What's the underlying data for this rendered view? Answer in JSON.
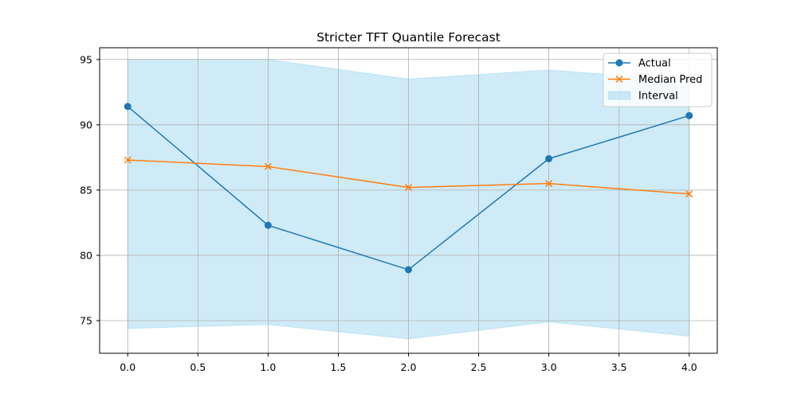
{
  "chart_data": {
    "type": "line",
    "title": "Stricter TFT Quantile Forecast",
    "xlabel": "",
    "ylabel": "",
    "x": [
      0,
      1,
      2,
      3,
      4
    ],
    "xlim": [
      -0.2,
      4.2
    ],
    "ylim": [
      72.5,
      95.9
    ],
    "xticks": [
      0.0,
      0.5,
      1.0,
      1.5,
      2.0,
      2.5,
      3.0,
      3.5,
      4.0
    ],
    "xtick_labels": [
      "0.0",
      "0.5",
      "1.0",
      "1.5",
      "2.0",
      "2.5",
      "3.0",
      "3.5",
      "4.0"
    ],
    "yticks": [
      75,
      80,
      85,
      90,
      95
    ],
    "ytick_labels": [
      "75",
      "80",
      "85",
      "90",
      "95"
    ],
    "grid": true,
    "legend_position": "top-right",
    "series": [
      {
        "name": "Actual",
        "kind": "line",
        "marker": "circle",
        "color": "#1f77b4",
        "values": [
          91.4,
          82.3,
          78.9,
          87.4,
          90.7
        ]
      },
      {
        "name": "Median Pred",
        "kind": "line",
        "marker": "x",
        "color": "#ff7f0e",
        "values": [
          87.3,
          86.8,
          85.2,
          85.5,
          84.7
        ]
      },
      {
        "name": "Interval",
        "kind": "band",
        "color": "#87ceeb",
        "lower": [
          74.4,
          74.7,
          73.6,
          74.9,
          73.8
        ],
        "upper": [
          95.0,
          95.0,
          93.5,
          94.2,
          93.4
        ]
      }
    ]
  }
}
